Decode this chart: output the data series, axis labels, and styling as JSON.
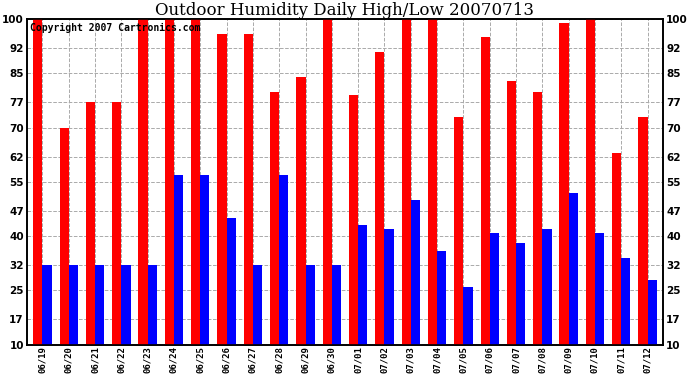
{
  "title": "Outdoor Humidity Daily High/Low 20070713",
  "copyright": "Copyright 2007 Cartronics.com",
  "dates": [
    "06/19",
    "06/20",
    "06/21",
    "06/22",
    "06/23",
    "06/24",
    "06/25",
    "06/26",
    "06/27",
    "06/28",
    "06/29",
    "06/30",
    "07/01",
    "07/02",
    "07/03",
    "07/04",
    "07/05",
    "07/06",
    "07/07",
    "07/08",
    "07/09",
    "07/10",
    "07/11",
    "07/12"
  ],
  "highs": [
    100,
    70,
    77,
    77,
    100,
    100,
    100,
    96,
    96,
    80,
    84,
    100,
    79,
    91,
    100,
    100,
    73,
    95,
    83,
    80,
    99,
    100,
    63,
    73
  ],
  "lows": [
    32,
    32,
    32,
    32,
    32,
    57,
    57,
    45,
    32,
    57,
    32,
    32,
    43,
    42,
    50,
    36,
    26,
    41,
    38,
    42,
    52,
    41,
    34,
    28
  ],
  "high_color": "#ff0000",
  "low_color": "#0000ff",
  "bg_color": "#ffffff",
  "grid_color": "#aaaaaa",
  "yticks": [
    10,
    17,
    25,
    32,
    40,
    47,
    55,
    62,
    70,
    77,
    85,
    92,
    100
  ],
  "ylim_min": 10,
  "ylim_max": 100,
  "bar_width": 0.35,
  "title_fontsize": 12,
  "copyright_fontsize": 7,
  "figwidth": 6.9,
  "figheight": 3.75,
  "dpi": 100
}
